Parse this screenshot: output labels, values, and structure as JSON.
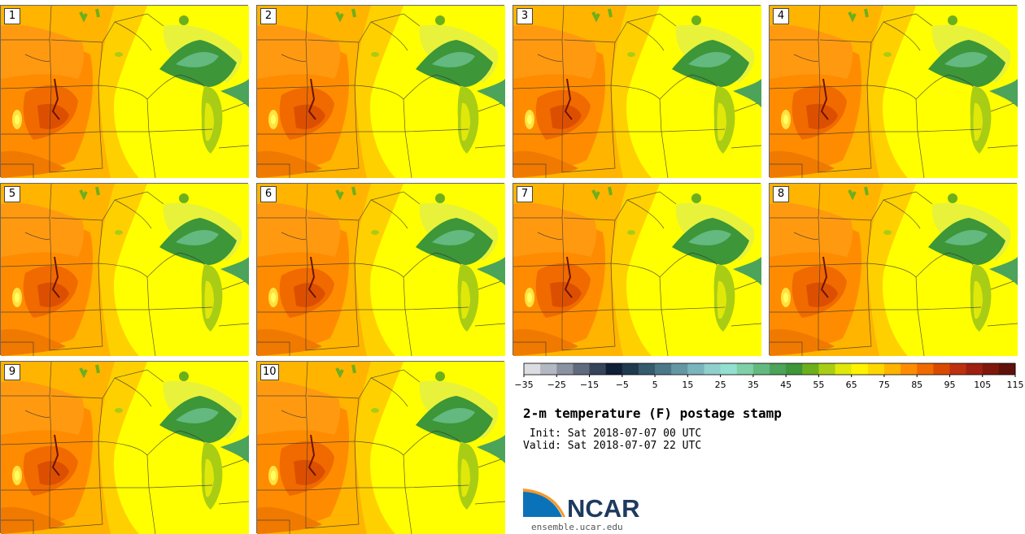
{
  "panels": [
    {
      "label": "1"
    },
    {
      "label": "2"
    },
    {
      "label": "3"
    },
    {
      "label": "4"
    },
    {
      "label": "5"
    },
    {
      "label": "6"
    },
    {
      "label": "7"
    },
    {
      "label": "8"
    },
    {
      "label": "9"
    },
    {
      "label": "10"
    }
  ],
  "colorbar": {
    "ticks": [
      "−35",
      "−25",
      "−15",
      "−5",
      "5",
      "15",
      "25",
      "35",
      "45",
      "55",
      "65",
      "75",
      "85",
      "95",
      "105",
      "115"
    ],
    "colors": [
      "#dcdde3",
      "#b4b8c2",
      "#8a91a0",
      "#5f6a7e",
      "#364459",
      "#0f1f36",
      "#1f3a4e",
      "#355b6c",
      "#4b7888",
      "#6398a3",
      "#7ab5bb",
      "#8fcfcc",
      "#93e0d0",
      "#7fcfa7",
      "#63b980",
      "#4ca35a",
      "#3d9638",
      "#6caf1e",
      "#a9cd14",
      "#e0e80a",
      "#fff300",
      "#ffd700",
      "#ffb400",
      "#ff8c00",
      "#f06a00",
      "#d94a00",
      "#bc3010",
      "#9f2010",
      "#7f180c",
      "#5f120a"
    ]
  },
  "title": "2-m temperature (F) postage stamp",
  "init": " Init: Sat 2018-07-07 00 UTC",
  "valid": "Valid: Sat 2018-07-07 22 UTC",
  "logo": {
    "text": "NCAR",
    "url": "ensemble.ucar.edu",
    "colors": {
      "blue": "#0a72b8",
      "dark": "#1e3a5f",
      "orange": "#f39a2e"
    }
  }
}
